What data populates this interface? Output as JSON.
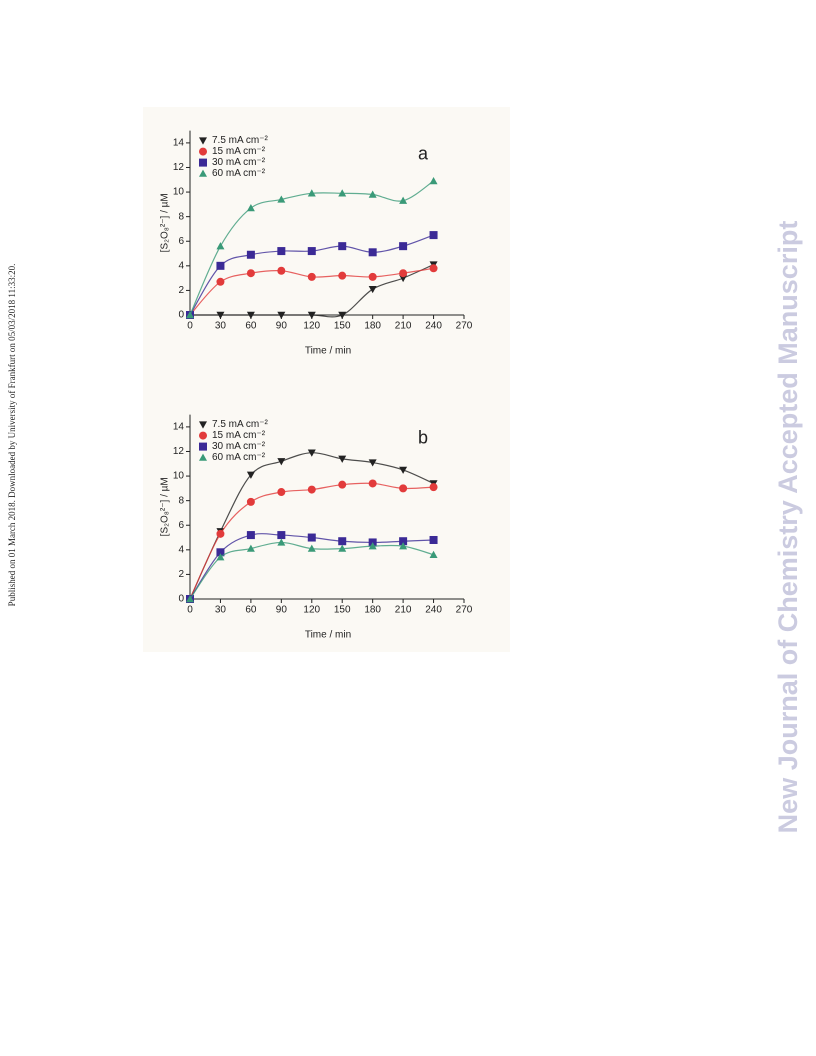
{
  "side_note": "Published on 01 March 2018. Downloaded by University of Frankfurt on 05/03/2018 11:33:20.",
  "watermark": "New Journal of Chemistry Accepted Manuscript",
  "chart_data": [
    {
      "type": "scatter",
      "panel_label": "a",
      "x_label": "Time / min",
      "y_label": "[S₂O₈²⁻] / µM",
      "x": [
        0,
        30,
        60,
        90,
        120,
        150,
        180,
        210,
        240
      ],
      "xlim": [
        0,
        270
      ],
      "xticks": [
        0,
        30,
        60,
        90,
        120,
        150,
        180,
        210,
        240,
        270
      ],
      "ylim": [
        0,
        15
      ],
      "yticks": [
        0,
        2,
        4,
        6,
        8,
        10,
        12,
        14
      ],
      "series": [
        {
          "name": "7.5 mA cm⁻²",
          "color": "#222222",
          "marker": "triangle-down",
          "values": [
            0,
            0,
            0,
            0,
            0,
            0,
            2.1,
            3.0,
            4.1
          ]
        },
        {
          "name": "15 mA cm⁻²",
          "color": "#e23b3b",
          "marker": "circle",
          "values": [
            0,
            2.7,
            3.4,
            3.6,
            3.1,
            3.2,
            3.1,
            3.4,
            3.8
          ]
        },
        {
          "name": "30 mA cm⁻²",
          "color": "#3b2a96",
          "marker": "square",
          "values": [
            0,
            4.0,
            4.9,
            5.2,
            5.2,
            5.6,
            5.1,
            5.6,
            6.5
          ]
        },
        {
          "name": "60 mA cm⁻²",
          "color": "#3a9a78",
          "marker": "triangle-up",
          "values": [
            0,
            5.6,
            8.7,
            9.4,
            9.9,
            9.9,
            9.8,
            9.3,
            10.9
          ]
        }
      ]
    },
    {
      "type": "scatter",
      "panel_label": "b",
      "x_label": "Time / min",
      "y_label": "[S₂O₈²⁻] / µM",
      "x": [
        0,
        30,
        60,
        90,
        120,
        150,
        180,
        210,
        240
      ],
      "xlim": [
        0,
        270
      ],
      "xticks": [
        0,
        30,
        60,
        90,
        120,
        150,
        180,
        210,
        240,
        270
      ],
      "ylim": [
        0,
        15
      ],
      "yticks": [
        0,
        2,
        4,
        6,
        8,
        10,
        12,
        14
      ],
      "series": [
        {
          "name": "7.5 mA cm⁻²",
          "color": "#222222",
          "marker": "triangle-down",
          "values": [
            0,
            5.5,
            10.1,
            11.2,
            11.9,
            11.4,
            11.1,
            10.5,
            9.4
          ]
        },
        {
          "name": "15 mA cm⁻²",
          "color": "#e23b3b",
          "marker": "circle",
          "values": [
            0,
            5.3,
            7.9,
            8.7,
            8.9,
            9.3,
            9.4,
            9.0,
            9.1
          ]
        },
        {
          "name": "30 mA cm⁻²",
          "color": "#3b2a96",
          "marker": "square",
          "values": [
            0,
            3.8,
            5.2,
            5.2,
            5.0,
            4.7,
            4.6,
            4.7,
            4.8
          ]
        },
        {
          "name": "60 mA cm⁻²",
          "color": "#3a9a78",
          "marker": "triangle-up",
          "values": [
            0,
            3.4,
            4.1,
            4.6,
            4.1,
            4.1,
            4.3,
            4.3,
            3.6
          ]
        }
      ]
    }
  ]
}
